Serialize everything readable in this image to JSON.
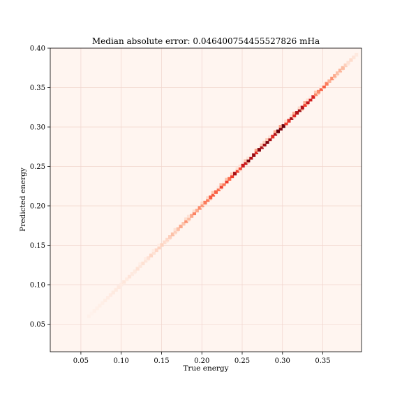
{
  "chart_data": {
    "type": "heatmap",
    "title": "Median absolute error: 0.046400754455527826 mHa",
    "xlabel": "True energy",
    "ylabel": "Predicted energy",
    "xlim": [
      0.012,
      0.398
    ],
    "ylim": [
      0.015,
      0.4
    ],
    "xticks": [
      0.05,
      0.1,
      0.15,
      0.2,
      0.25,
      0.3,
      0.35
    ],
    "xtick_labels": [
      "0.05",
      "0.10",
      "0.15",
      "0.20",
      "0.25",
      "0.30",
      "0.35"
    ],
    "yticks": [
      0.05,
      0.1,
      0.15,
      0.2,
      0.25,
      0.3,
      0.35,
      0.4
    ],
    "ytick_labels": [
      "0.05",
      "0.10",
      "0.15",
      "0.20",
      "0.25",
      "0.30",
      "0.35",
      "0.40"
    ],
    "grid": true,
    "colormap": "Reds",
    "bins": 100,
    "density_profile": [
      {
        "x": 0.06,
        "density": 0.02
      },
      {
        "x": 0.08,
        "density": 0.04
      },
      {
        "x": 0.1,
        "density": 0.07
      },
      {
        "x": 0.12,
        "density": 0.09
      },
      {
        "x": 0.14,
        "density": 0.14
      },
      {
        "x": 0.16,
        "density": 0.2
      },
      {
        "x": 0.18,
        "density": 0.3
      },
      {
        "x": 0.2,
        "density": 0.4
      },
      {
        "x": 0.22,
        "density": 0.55
      },
      {
        "x": 0.24,
        "density": 0.7
      },
      {
        "x": 0.26,
        "density": 0.82
      },
      {
        "x": 0.28,
        "density": 0.8
      },
      {
        "x": 0.3,
        "density": 0.85
      },
      {
        "x": 0.32,
        "density": 0.75
      },
      {
        "x": 0.34,
        "density": 0.55
      },
      {
        "x": 0.36,
        "density": 0.35
      },
      {
        "x": 0.38,
        "density": 0.15
      },
      {
        "x": 0.395,
        "density": 0.06
      }
    ],
    "colors": {
      "background": "#fff5f0",
      "grid": "#f1d4cc",
      "frame": "#000000"
    }
  }
}
